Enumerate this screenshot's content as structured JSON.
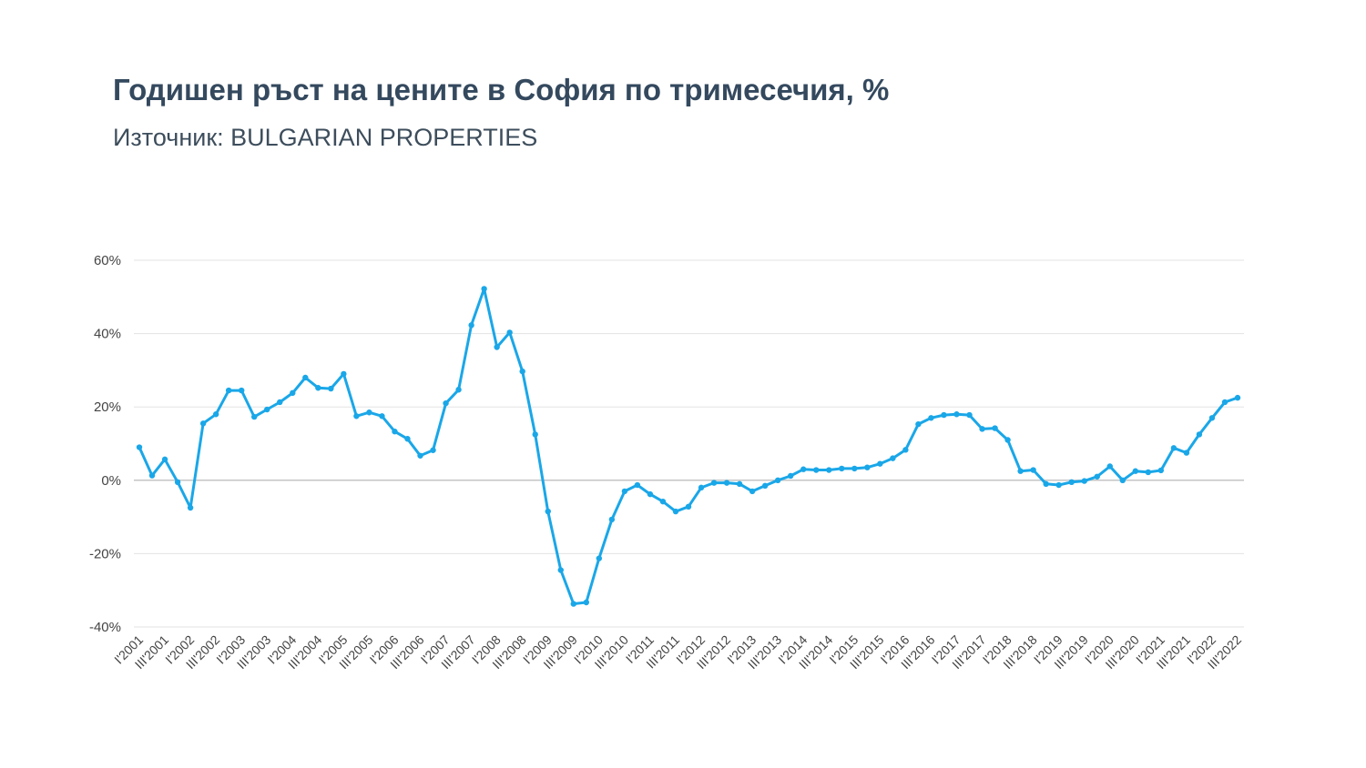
{
  "header": {
    "title": "Годишен ръст на цените в София по тримесечия, %",
    "subtitle": "Източник: BULGARIAN PROPERTIES"
  },
  "colors": {
    "series": "#1aa7e8",
    "grid": "#e3e3e3",
    "zero_line": "#c4c4c4",
    "text": "#444444"
  },
  "chart_data": {
    "type": "line",
    "title": "Годишен ръст на цените в София по тримесечия, %",
    "subtitle": "Източник: BULGARIAN PROPERTIES",
    "xlabel": "",
    "ylabel": "",
    "ylim": [
      -40,
      60
    ],
    "y_ticks": [
      -40,
      -20,
      0,
      20,
      40,
      60
    ],
    "y_tick_labels": [
      "-40%",
      "-20%",
      "0%",
      "20%",
      "40%",
      "60%"
    ],
    "grid": true,
    "legend": "none",
    "x": [
      "I'2001",
      "II'2001",
      "III'2001",
      "IV'2001",
      "I'2002",
      "II'2002",
      "III'2002",
      "IV'2002",
      "I'2003",
      "II'2003",
      "III'2003",
      "IV'2003",
      "I'2004",
      "II'2004",
      "III'2004",
      "IV'2004",
      "I'2005",
      "II'2005",
      "III'2005",
      "IV'2005",
      "I'2006",
      "II'2006",
      "III'2006",
      "IV'2006",
      "I'2007",
      "II'2007",
      "III'2007",
      "IV'2007",
      "I'2008",
      "II'2008",
      "III'2008",
      "IV'2008",
      "I'2009",
      "II'2009",
      "III'2009",
      "IV'2009",
      "I'2010",
      "II'2010",
      "III'2010",
      "IV'2010",
      "I'2011",
      "II'2011",
      "III'2011",
      "IV'2011",
      "I'2012",
      "II'2012",
      "III'2012",
      "IV'2012",
      "I'2013",
      "II'2013",
      "III'2013",
      "IV'2013",
      "I'2014",
      "II'2014",
      "III'2014",
      "IV'2014",
      "I'2015",
      "II'2015",
      "III'2015",
      "IV'2015",
      "I'2016",
      "II'2016",
      "III'2016",
      "IV'2016",
      "I'2017",
      "II'2017",
      "III'2017",
      "IV'2017",
      "I'2018",
      "II'2018",
      "III'2018",
      "IV'2018",
      "I'2019",
      "II'2019",
      "III'2019",
      "IV'2019",
      "I'2020",
      "II'2020",
      "III'2020",
      "IV'2020",
      "I'2021",
      "II'2021",
      "III'2021",
      "IV'2021",
      "I'2022",
      "II'2022",
      "III'2022"
    ],
    "x_tick_labels": [
      "I'2001",
      "III'2001",
      "I'2002",
      "III'2002",
      "I'2003",
      "III'2003",
      "I'2004",
      "III'2004",
      "I'2005",
      "III'2005",
      "I'2006",
      "III'2006",
      "I'2007",
      "III'2007",
      "I'2008",
      "III'2008",
      "I'2009",
      "III'2009",
      "I'2010",
      "III'2010",
      "I'2011",
      "III'2011",
      "I'2012",
      "III'2012",
      "I'2013",
      "III'2013",
      "I'2014",
      "III'2014",
      "I'2015",
      "III'2015",
      "I'2016",
      "III'2016",
      "I'2017",
      "III'2017",
      "I'2018",
      "III'2018",
      "I'2019",
      "III'2019",
      "I'2020",
      "III'2020",
      "I'2021",
      "III'2021",
      "I'2022",
      "III'2022"
    ],
    "series": [
      {
        "values": [
          9.0,
          1.3,
          5.7,
          -0.5,
          -7.5,
          15.5,
          18.0,
          24.5,
          24.5,
          17.3,
          19.3,
          21.3,
          23.8,
          28.0,
          25.2,
          25.0,
          29.0,
          17.5,
          18.5,
          17.5,
          13.3,
          11.3,
          6.7,
          8.2,
          21.0,
          24.7,
          42.3,
          52.2,
          36.3,
          40.3,
          29.7,
          12.5,
          -8.5,
          -24.5,
          -33.7,
          -33.3,
          -21.3,
          -10.7,
          -3.0,
          -1.3,
          -3.8,
          -5.8,
          -8.5,
          -7.2,
          -2.0,
          -0.7,
          -0.7,
          -1.0,
          -3.0,
          -1.5,
          0.0,
          1.2,
          3.0,
          2.8,
          2.8,
          3.2,
          3.2,
          3.5,
          4.5,
          6.0,
          8.3,
          15.3,
          17.0,
          17.8,
          18.0,
          17.8,
          14.0,
          14.2,
          11.0,
          2.5,
          2.8,
          -1.0,
          -1.3,
          -0.5,
          -0.2,
          1.0,
          3.8,
          0.0,
          2.5,
          2.2,
          2.7,
          8.8,
          7.5,
          12.5,
          17.0,
          21.3,
          22.5
        ]
      }
    ]
  }
}
